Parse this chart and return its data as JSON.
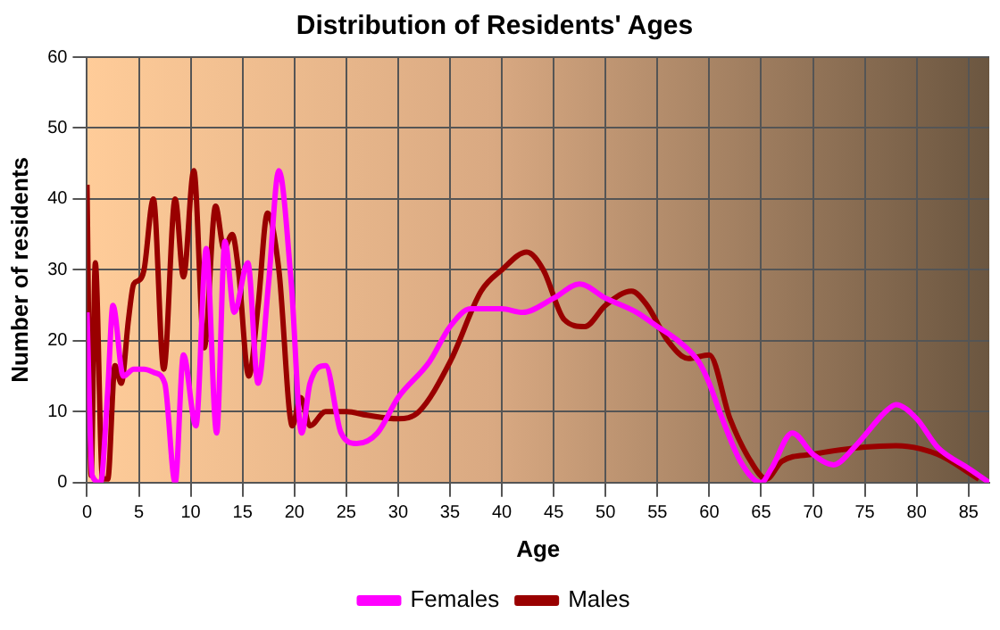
{
  "chart_data": {
    "type": "line",
    "title": "Distribution of Residents' Ages",
    "xlabel": "Age",
    "ylabel": "Number of residents",
    "xlim": [
      0,
      87
    ],
    "xticks": [
      0,
      5,
      10,
      15,
      20,
      25,
      30,
      35,
      40,
      45,
      50,
      55,
      60,
      65,
      70,
      75,
      80,
      85
    ],
    "ylim": [
      0,
      60
    ],
    "yticks": [
      0,
      10,
      20,
      30,
      40,
      50,
      60
    ],
    "grid": true,
    "legend": "bottom",
    "marker": "none",
    "line_style": "solid",
    "series": [
      {
        "name": "Males",
        "color": "#990000",
        "x": [
          0,
          0.4,
          0.8,
          1.5,
          2,
          2.7,
          3.3,
          4,
          4.5,
          5,
          5.5,
          6.4,
          7.4,
          8.5,
          9.3,
          10.3,
          11.3,
          12.4,
          13.2,
          14,
          14.6,
          15.6,
          16.5,
          17.4,
          18.5,
          19.8,
          20.6,
          21.5,
          23,
          25,
          27,
          30,
          32,
          35,
          38,
          40,
          42.4,
          44,
          46,
          48,
          50,
          52.5,
          54,
          56,
          58,
          60,
          62,
          64,
          65.5,
          67,
          70,
          75,
          78,
          82,
          86
        ],
        "values": [
          42,
          1,
          31,
          0.5,
          0.5,
          16.5,
          14,
          23,
          28,
          28.5,
          30,
          40,
          16,
          40,
          29,
          44,
          19,
          39,
          33,
          35,
          30,
          15,
          25,
          38,
          30,
          8,
          12,
          8,
          10,
          10,
          9.5,
          9,
          10,
          17,
          27,
          30,
          32.5,
          30,
          23,
          22,
          25,
          27,
          25,
          20,
          17.5,
          18,
          9,
          3,
          0.5,
          3,
          4,
          5,
          5.2,
          4,
          0.5
        ]
      },
      {
        "name": "Females",
        "color": "#ff00ff",
        "x": [
          0,
          0.5,
          1.3,
          2,
          2.5,
          3.5,
          4.5,
          5.5,
          6.5,
          7.5,
          8.5,
          9.3,
          10.5,
          11.5,
          12.5,
          13.3,
          14.2,
          15.5,
          16.5,
          17.5,
          18.5,
          19.7,
          20.7,
          21.5,
          23,
          24.5,
          26,
          28,
          30,
          33,
          35,
          37,
          40,
          42,
          45,
          47.5,
          50,
          53,
          55,
          57,
          59,
          60,
          61,
          63,
          65,
          66,
          68,
          70,
          72,
          74,
          77,
          78,
          80,
          82,
          85,
          87
        ],
        "values": [
          24,
          1,
          0,
          13,
          25,
          15,
          16,
          16,
          15.5,
          14,
          0,
          18,
          8,
          33,
          7,
          34,
          24,
          31,
          14,
          28,
          44,
          28,
          7,
          14,
          16.5,
          7,
          5.5,
          7,
          12,
          17,
          22,
          24.5,
          24.5,
          24,
          26,
          28,
          26,
          24,
          22,
          20,
          17,
          14,
          10,
          3,
          0,
          2,
          7,
          4,
          2.5,
          5,
          10,
          11,
          9,
          5,
          2,
          0
        ]
      }
    ]
  }
}
